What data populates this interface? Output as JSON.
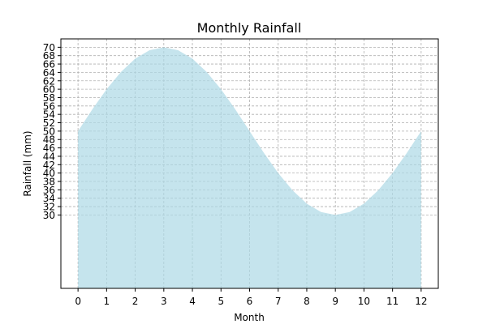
{
  "chart_data": {
    "type": "area",
    "title": "Monthly Rainfall",
    "xlabel": "Month",
    "ylabel": "Rainfall (mm)",
    "x": [
      0,
      0.5,
      1,
      1.5,
      2,
      2.5,
      3,
      3.5,
      4,
      4.5,
      5,
      5.5,
      6,
      6.5,
      7,
      7.5,
      8,
      8.5,
      9,
      9.5,
      10,
      10.5,
      11,
      11.5,
      12
    ],
    "series": [
      {
        "values": [
          50.0,
          55.2,
          60.0,
          64.1,
          67.3,
          69.3,
          70.0,
          69.3,
          67.3,
          64.1,
          60.0,
          55.2,
          50.0,
          44.8,
          40.0,
          35.9,
          32.7,
          30.7,
          30.0,
          30.7,
          32.7,
          35.9,
          40.0,
          44.8,
          50.0
        ],
        "color": "#add8e6",
        "opacity": 0.7
      }
    ],
    "xlim": [
      -0.6,
      12.6
    ],
    "ylim": [
      12.5,
      72
    ],
    "xticks": [
      0,
      1,
      2,
      3,
      4,
      5,
      6,
      7,
      8,
      9,
      10,
      11,
      12
    ],
    "yticks": [
      30,
      32,
      34,
      36,
      38,
      40,
      42,
      44,
      46,
      48,
      50,
      52,
      54,
      56,
      58,
      60,
      62,
      64,
      66,
      68,
      70
    ],
    "grid": true,
    "fill_baseline": 12.5
  }
}
